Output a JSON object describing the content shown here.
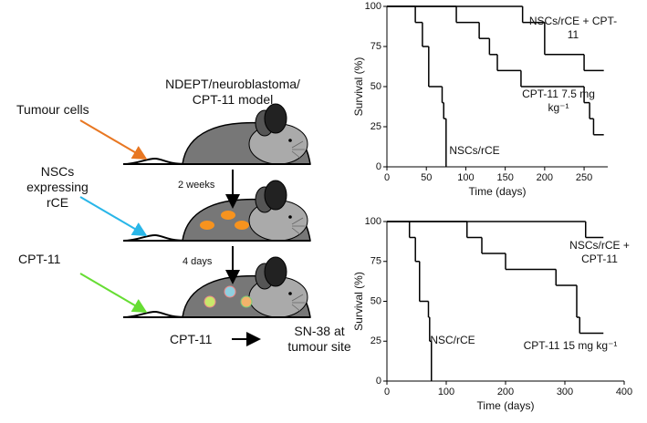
{
  "diagram": {
    "title": "NDEPT/neuroblastoma/ CPT-11 model",
    "step1": "Tumour cells",
    "step2": "NSCs expressing rCE",
    "step3": "CPT-11",
    "interval1": "2 weeks",
    "interval2": "4 days",
    "reaction_from": "CPT-11",
    "reaction_to": "SN-38 at tumour site"
  },
  "chart_data": [
    {
      "type": "step",
      "xlabel": "Time (days)",
      "ylabel": "Survival (%)",
      "xlim": [
        0,
        280
      ],
      "xticks": [
        0,
        50,
        100,
        150,
        200,
        250
      ],
      "ylim": [
        0,
        100
      ],
      "yticks": [
        0,
        25,
        50,
        75,
        100
      ],
      "series": [
        {
          "name": "NSCs/rCE + CPT-11",
          "color": "#000000",
          "x": [
            0,
            172,
            200,
            250,
            275
          ],
          "values": [
            100,
            90,
            70,
            60,
            60
          ]
        },
        {
          "name": "CPT-11 7.5 mg kg⁻¹",
          "color": "#000000",
          "x": [
            0,
            88,
            117,
            130,
            140,
            170,
            250,
            257,
            262,
            275
          ],
          "values": [
            100,
            90,
            80,
            70,
            60,
            50,
            40,
            30,
            20,
            20
          ]
        },
        {
          "name": "NSCs/rCE",
          "color": "#000000",
          "x": [
            0,
            36,
            45,
            53,
            70,
            72,
            75
          ],
          "values": [
            100,
            90,
            75,
            50,
            40,
            30,
            0
          ]
        }
      ]
    },
    {
      "type": "step",
      "xlabel": "Time (days)",
      "ylabel": "Survival (%)",
      "xlim": [
        0,
        400
      ],
      "xticks": [
        0,
        100,
        200,
        300,
        400
      ],
      "ylim": [
        0,
        100
      ],
      "yticks": [
        0,
        25,
        50,
        75,
        100
      ],
      "series": [
        {
          "name": "NSCs/rCE + CPT-11",
          "color": "#000000",
          "x": [
            0,
            335,
            365
          ],
          "values": [
            100,
            90,
            90
          ]
        },
        {
          "name": "CPT-11 15 mg kg⁻¹",
          "color": "#000000",
          "x": [
            0,
            135,
            160,
            200,
            285,
            320,
            325,
            365
          ],
          "values": [
            100,
            90,
            80,
            70,
            60,
            40,
            30,
            30
          ]
        },
        {
          "name": "NSC/rCE",
          "color": "#000000",
          "x": [
            0,
            38,
            48,
            55,
            70,
            72,
            75
          ],
          "values": [
            100,
            90,
            75,
            50,
            40,
            25,
            0
          ]
        }
      ]
    }
  ]
}
